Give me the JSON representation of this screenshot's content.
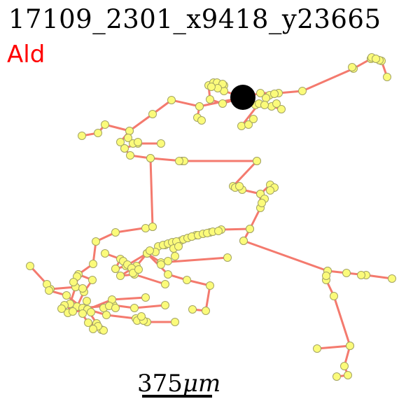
{
  "title": "17109_2301_x9418_y23665",
  "label": "Ald",
  "label_color": "#ff0000",
  "scale_bar": {
    "value": "375",
    "unit": "μm"
  },
  "colors": {
    "edge": "#f47a6e",
    "node_fill": "#fbfb7a",
    "node_stroke": "#a4a464",
    "soma": "#000000"
  },
  "icons": {
    "soma": "soma-marker",
    "nodes": "node-marker"
  }
}
